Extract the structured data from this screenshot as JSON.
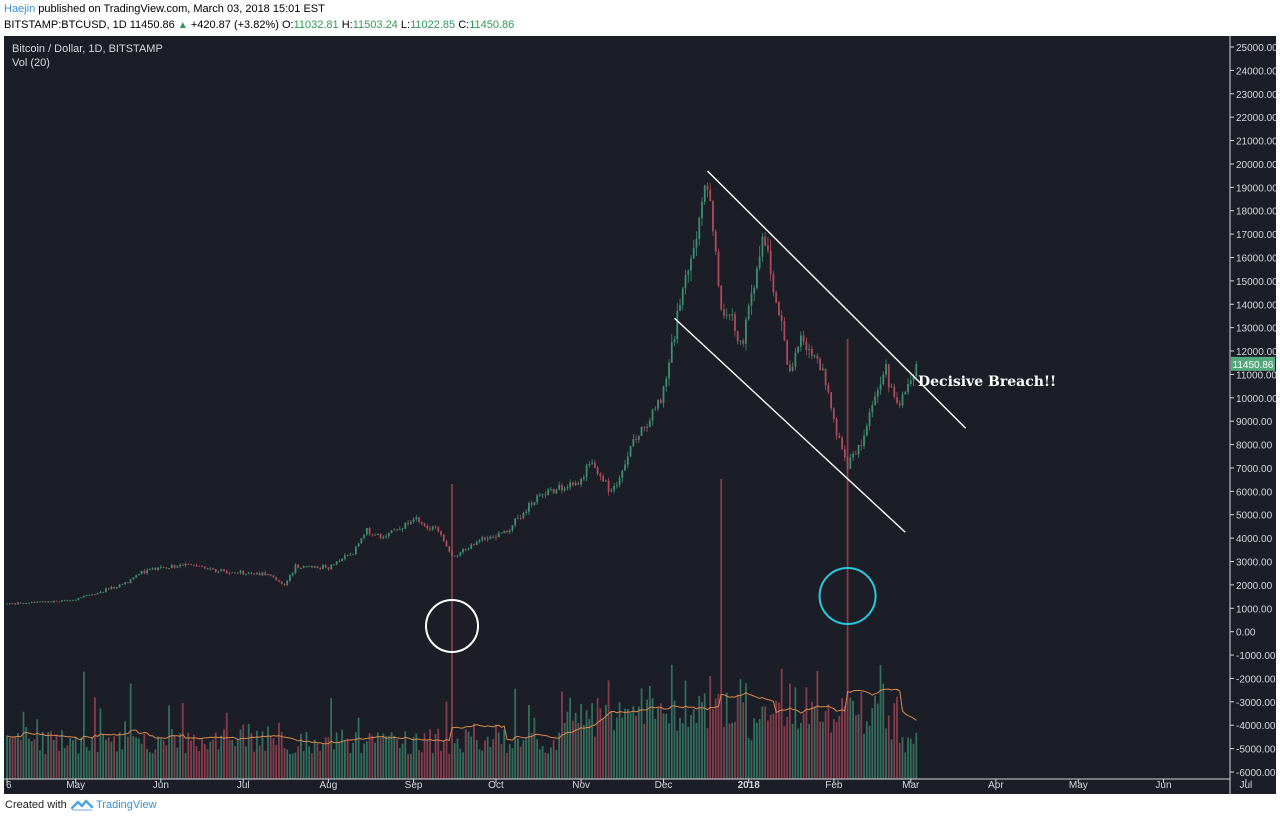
{
  "header": {
    "author": "Haejin",
    "published_text": "published on TradingView.com, March 03, 2018 15:01 EST",
    "symbol": "BITSTAMP:BTCUSD, 1D",
    "last": "11450.86",
    "change_icon": "up-triangle-icon",
    "change": "+420.87 (+3.82%)",
    "o_label": "O:",
    "o_value": "11032.81",
    "h_label": "H:",
    "h_value": "11503.24",
    "l_label": "L:",
    "l_value": "11022.85",
    "c_label": "C:",
    "c_value": "11450.86"
  },
  "legend": {
    "main": "Bitcoin / Dollar, 1D, BITSTAMP",
    "volume": "Vol (20)"
  },
  "footer": {
    "created_with": "Created with",
    "brand": "TradingView",
    "logo_icon": "tradingview-logo-icon"
  },
  "colors": {
    "background": "#1b1d27",
    "up": "#3e8e72",
    "down": "#b04a5a",
    "volume_ma": "#d98a4b",
    "annotation_white": "#ffffff",
    "annotation_cyan": "#27c9dc",
    "last_price_badge": "#53a97c"
  },
  "chart_data": {
    "type": "candlestick",
    "title": "Bitcoin / Dollar, 1D, BITSTAMP",
    "y_axis_labels": [
      "25000.00",
      "24000.00",
      "23000.00",
      "22000.00",
      "21000.00",
      "20000.00",
      "19000.00",
      "18000.00",
      "17000.00",
      "16000.00",
      "15000.00",
      "14000.00",
      "13000.00",
      "12000.00",
      "11000.00",
      "10000.00",
      "9000.00",
      "8000.00",
      "7000.00",
      "6000.00",
      "5000.00",
      "4000.00",
      "3000.00",
      "2000.00",
      "1000.00",
      "0.00",
      "-1000.00",
      "-2000.00",
      "-3000.00",
      "-4000.00",
      "-5000.00",
      "-6000.00"
    ],
    "ylim": [
      -6300,
      25300
    ],
    "x_tick_labels": [
      "6",
      "May",
      "Jun",
      "Jul",
      "Aug",
      "Sep",
      "Oct",
      "Nov",
      "Dec",
      "2018",
      "Feb",
      "Mar",
      "Apr",
      "May",
      "Jun",
      "Jul"
    ],
    "last_price": 11450.86,
    "price_path": [
      [
        "2017-04-06",
        1180
      ],
      [
        "2017-04-30",
        1350
      ],
      [
        "2017-05-10",
        1700
      ],
      [
        "2017-05-20",
        2100
      ],
      [
        "2017-05-25",
        2550
      ],
      [
        "2017-06-10",
        2900
      ],
      [
        "2017-06-25",
        2550
      ],
      [
        "2017-07-10",
        2450
      ],
      [
        "2017-07-16",
        1950
      ],
      [
        "2017-07-20",
        2800
      ],
      [
        "2017-08-01",
        2750
      ],
      [
        "2017-08-10",
        3400
      ],
      [
        "2017-08-15",
        4300
      ],
      [
        "2017-08-20",
        4000
      ],
      [
        "2017-09-01",
        4800
      ],
      [
        "2017-09-10",
        4300
      ],
      [
        "2017-09-15",
        3200
      ],
      [
        "2017-09-25",
        3900
      ],
      [
        "2017-10-05",
        4300
      ],
      [
        "2017-10-12",
        5300
      ],
      [
        "2017-10-20",
        6000
      ],
      [
        "2017-10-31",
        6400
      ],
      [
        "2017-11-05",
        7300
      ],
      [
        "2017-11-12",
        5900
      ],
      [
        "2017-11-20",
        8000
      ],
      [
        "2017-11-30",
        9800
      ],
      [
        "2017-12-07",
        14000
      ],
      [
        "2017-12-12",
        16500
      ],
      [
        "2017-12-17",
        19300
      ],
      [
        "2017-12-22",
        13800
      ],
      [
        "2017-12-30",
        12500
      ],
      [
        "2018-01-06",
        17000
      ],
      [
        "2018-01-16",
        11000
      ],
      [
        "2018-01-20",
        12800
      ],
      [
        "2018-01-28",
        11200
      ],
      [
        "2018-02-01",
        9000
      ],
      [
        "2018-02-06",
        6900
      ],
      [
        "2018-02-12",
        8500
      ],
      [
        "2018-02-20",
        11200
      ],
      [
        "2018-02-25",
        9600
      ],
      [
        "2018-03-03",
        11450
      ]
    ],
    "volume_spikes": [
      {
        "date": "2017-09-15",
        "value": 295
      },
      {
        "date": "2017-12-22",
        "value": 300
      },
      {
        "date": "2018-02-06",
        "value": 440
      }
    ],
    "channel_upper_line": [
      {
        "date": "2017-12-17",
        "price": 19700
      },
      {
        "date": "2018-03-21",
        "price": 8700
      }
    ],
    "channel_lower_line": [
      {
        "date": "2017-12-05",
        "price": 13400
      },
      {
        "date": "2018-02-27",
        "price": 4250
      }
    ],
    "annotations": [
      {
        "type": "text",
        "text": "Decisive Breach!!"
      },
      {
        "type": "circle",
        "color": "white",
        "date": "2017-09-15",
        "note": "volume spike"
      },
      {
        "type": "circle",
        "color": "cyan",
        "date": "2018-02-06",
        "note": "volume spike"
      }
    ]
  }
}
